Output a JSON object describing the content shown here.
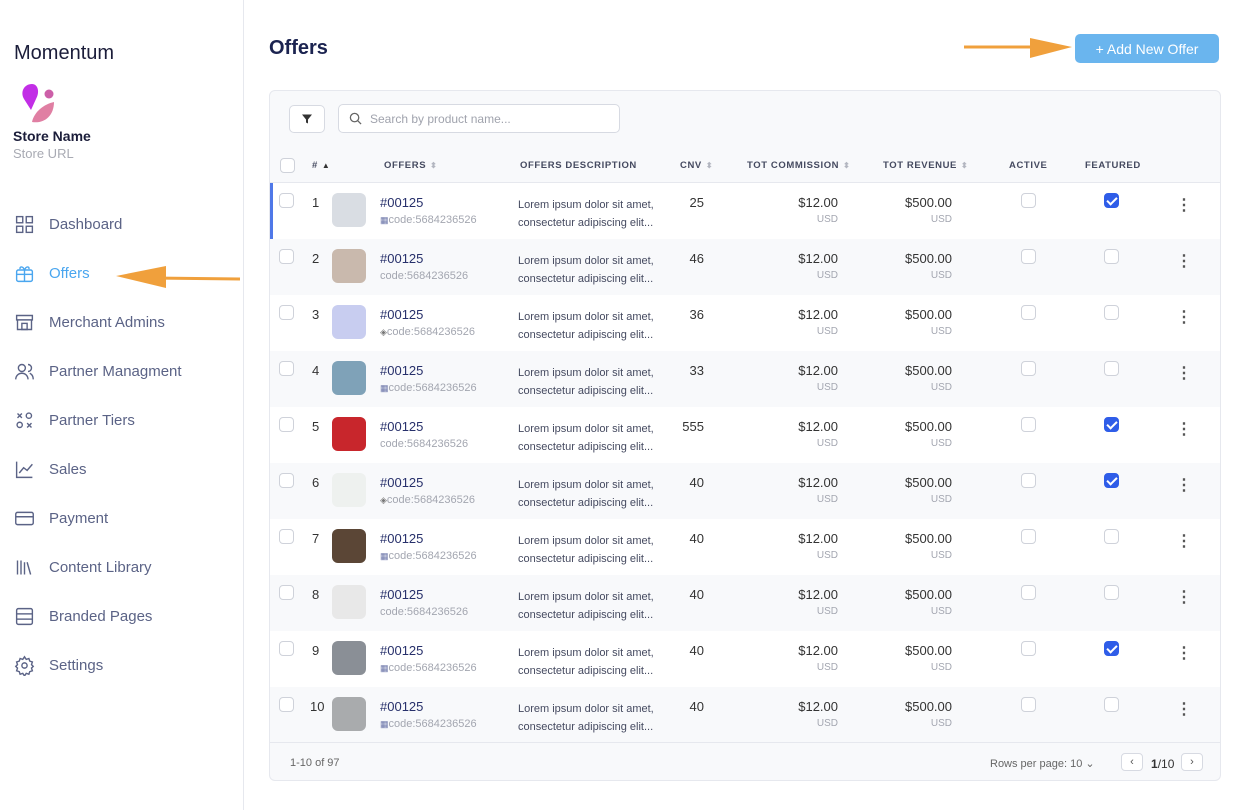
{
  "app": {
    "brand": "Momentum",
    "store_name": "Store Name",
    "store_url": "Store URL"
  },
  "sidebar": {
    "items": [
      {
        "label": "Dashboard",
        "icon": "grid-icon",
        "active": false
      },
      {
        "label": "Offers",
        "icon": "gift-icon",
        "active": true
      },
      {
        "label": "Merchant Admins",
        "icon": "store-icon",
        "active": false
      },
      {
        "label": "Partner Managment",
        "icon": "users-icon",
        "active": false
      },
      {
        "label": "Partner Tiers",
        "icon": "tiers-icon",
        "active": false
      },
      {
        "label": "Sales",
        "icon": "chart-line-icon",
        "active": false
      },
      {
        "label": "Payment",
        "icon": "credit-card-icon",
        "active": false
      },
      {
        "label": "Content Library",
        "icon": "library-icon",
        "active": false
      },
      {
        "label": "Branded Pages",
        "icon": "pages-icon",
        "active": false
      },
      {
        "label": "Settings",
        "icon": "gear-icon",
        "active": false
      }
    ]
  },
  "header": {
    "title": "Offers",
    "add_label": "+ Add New Offer"
  },
  "toolbar": {
    "search_placeholder": "Search by product name..."
  },
  "table": {
    "columns": [
      "#",
      "OFFERS",
      "OFFERS DESCRIPTION",
      "CNV",
      "TOT COMMISSION",
      "TOT REVENUE",
      "ACTIVE",
      "FEATURED"
    ],
    "rows": [
      {
        "n": "1",
        "id": "#00125",
        "code": "code:5684236526",
        "code_icon": "store",
        "desc1": "Lorem ipsum dolor sit amet,",
        "desc2": "consectetur adipiscing elit...",
        "cnv": "25",
        "commission": "$12.00",
        "revenue": "$500.00",
        "currency": "USD",
        "active": false,
        "featured": true,
        "thumb": "#d9dde3"
      },
      {
        "n": "2",
        "id": "#00125",
        "code": "code:5684236526",
        "code_icon": "",
        "desc1": "Lorem ipsum dolor sit amet,",
        "desc2": "consectetur adipiscing elit...",
        "cnv": "46",
        "commission": "$12.00",
        "revenue": "$500.00",
        "currency": "USD",
        "active": false,
        "featured": false,
        "thumb": "#c9b9ad"
      },
      {
        "n": "3",
        "id": "#00125",
        "code": "code:5684236526",
        "code_icon": "layers",
        "desc1": "Lorem ipsum dolor sit amet,",
        "desc2": "consectetur adipiscing elit...",
        "cnv": "36",
        "commission": "$12.00",
        "revenue": "$500.00",
        "currency": "USD",
        "active": false,
        "featured": false,
        "thumb": "#c8cdf0"
      },
      {
        "n": "4",
        "id": "#00125",
        "code": "code:5684236526",
        "code_icon": "store",
        "desc1": "Lorem ipsum dolor sit amet,",
        "desc2": "consectetur adipiscing elit...",
        "cnv": "33",
        "commission": "$12.00",
        "revenue": "$500.00",
        "currency": "USD",
        "active": false,
        "featured": false,
        "thumb": "#7fa2b8"
      },
      {
        "n": "5",
        "id": "#00125",
        "code": "code:5684236526",
        "code_icon": "",
        "desc1": "Lorem ipsum dolor sit amet,",
        "desc2": "consectetur adipiscing elit...",
        "cnv": "555",
        "commission": "$12.00",
        "revenue": "$500.00",
        "currency": "USD",
        "active": false,
        "featured": true,
        "thumb": "#c8262c"
      },
      {
        "n": "6",
        "id": "#00125",
        "code": "code:5684236526",
        "code_icon": "layers",
        "desc1": "Lorem ipsum dolor sit amet,",
        "desc2": "consectetur adipiscing elit...",
        "cnv": "40",
        "commission": "$12.00",
        "revenue": "$500.00",
        "currency": "USD",
        "active": false,
        "featured": true,
        "thumb": "#eef1ef"
      },
      {
        "n": "7",
        "id": "#00125",
        "code": "code:5684236526",
        "code_icon": "store",
        "desc1": "Lorem ipsum dolor sit amet,",
        "desc2": "consectetur adipiscing elit...",
        "cnv": "40",
        "commission": "$12.00",
        "revenue": "$500.00",
        "currency": "USD",
        "active": false,
        "featured": false,
        "thumb": "#5b4636"
      },
      {
        "n": "8",
        "id": "#00125",
        "code": "code:5684236526",
        "code_icon": "",
        "desc1": "Lorem ipsum dolor sit amet,",
        "desc2": "consectetur adipiscing elit...",
        "cnv": "40",
        "commission": "$12.00",
        "revenue": "$500.00",
        "currency": "USD",
        "active": false,
        "featured": false,
        "thumb": "#e8e8e8"
      },
      {
        "n": "9",
        "id": "#00125",
        "code": "code:5684236526",
        "code_icon": "store",
        "desc1": "Lorem ipsum dolor sit amet,",
        "desc2": "consectetur adipiscing elit...",
        "cnv": "40",
        "commission": "$12.00",
        "revenue": "$500.00",
        "currency": "USD",
        "active": false,
        "featured": true,
        "thumb": "#8a8f96"
      },
      {
        "n": "10",
        "id": "#00125",
        "code": "code:5684236526",
        "code_icon": "store",
        "desc1": "Lorem ipsum dolor sit amet,",
        "desc2": "consectetur adipiscing elit...",
        "cnv": "40",
        "commission": "$12.00",
        "revenue": "$500.00",
        "currency": "USD",
        "active": false,
        "featured": false,
        "thumb": "#a9abad"
      }
    ]
  },
  "footer": {
    "range": "1-10 of 97",
    "rows_per_page": "Rows per page: 10",
    "page": "1",
    "page_total": "/10"
  },
  "colors": {
    "accent": "#4aa6ef",
    "button": "#6ab5ee",
    "checkbox": "#2f5de8",
    "annotation_arrow": "#f0a03c"
  }
}
